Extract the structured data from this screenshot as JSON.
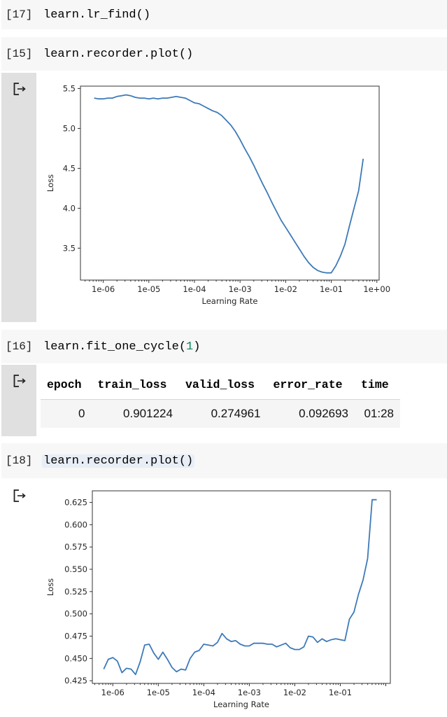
{
  "cells": [
    {
      "prompt": "[17]",
      "code": "learn.lr_find()"
    },
    {
      "prompt": "[15]",
      "code": "learn.recorder.plot()"
    },
    {
      "prompt": "[16]",
      "code_prefix": "learn.fit_one_cycle(",
      "code_arg": "1",
      "code_suffix": ")"
    },
    {
      "prompt": "[18]",
      "code": "learn.recorder.plot()"
    }
  ],
  "output_icon": "output-arrow-icon",
  "results_table": {
    "headers": [
      "epoch",
      "train_loss",
      "valid_loss",
      "error_rate",
      "time"
    ],
    "rows": [
      [
        "0",
        "0.901224",
        "0.274961",
        "0.092693",
        "01:28"
      ]
    ]
  },
  "colors": {
    "line": "#3d7ab8",
    "cell_bg": "#f7f7f7",
    "gutter_bg": "#e0e0e0"
  },
  "chart_data": [
    {
      "type": "line",
      "title": "",
      "xlabel": "Learning Rate",
      "ylabel": "Loss",
      "xscale": "log",
      "x_tick_labels": [
        "1e-06",
        "1e-05",
        "1e-04",
        "1e-03",
        "1e-02",
        "1e-01",
        "1e+00"
      ],
      "y_tick_labels": [
        "3.5",
        "4.0",
        "4.5",
        "5.0",
        "5.5"
      ],
      "ylim": [
        3.1,
        5.53
      ],
      "xlim_log10": [
        -6.5,
        0.05
      ],
      "grid": false,
      "series": [
        {
          "name": "loss",
          "log10_x": [
            -6.2,
            -6.1,
            -6.0,
            -5.9,
            -5.8,
            -5.7,
            -5.6,
            -5.5,
            -5.4,
            -5.3,
            -5.2,
            -5.1,
            -5.0,
            -4.9,
            -4.8,
            -4.7,
            -4.6,
            -4.5,
            -4.4,
            -4.3,
            -4.2,
            -4.1,
            -4.0,
            -3.9,
            -3.8,
            -3.7,
            -3.6,
            -3.5,
            -3.4,
            -3.3,
            -3.2,
            -3.1,
            -3.0,
            -2.9,
            -2.8,
            -2.7,
            -2.6,
            -2.5,
            -2.4,
            -2.3,
            -2.2,
            -2.1,
            -2.0,
            -1.9,
            -1.8,
            -1.7,
            -1.6,
            -1.5,
            -1.4,
            -1.3,
            -1.2,
            -1.1,
            -1.0,
            -0.9,
            -0.8,
            -0.7,
            -0.6,
            -0.5,
            -0.4,
            -0.3
          ],
          "loss": [
            5.38,
            5.37,
            5.37,
            5.38,
            5.38,
            5.4,
            5.41,
            5.42,
            5.41,
            5.39,
            5.38,
            5.38,
            5.37,
            5.38,
            5.37,
            5.38,
            5.38,
            5.39,
            5.4,
            5.39,
            5.38,
            5.35,
            5.32,
            5.31,
            5.28,
            5.25,
            5.22,
            5.2,
            5.16,
            5.1,
            5.04,
            4.96,
            4.86,
            4.75,
            4.65,
            4.54,
            4.42,
            4.3,
            4.19,
            4.07,
            3.96,
            3.85,
            3.76,
            3.67,
            3.58,
            3.49,
            3.4,
            3.32,
            3.26,
            3.22,
            3.2,
            3.19,
            3.19,
            3.28,
            3.4,
            3.55,
            3.78,
            4.0,
            4.22,
            4.62
          ]
        }
      ]
    },
    {
      "type": "line",
      "title": "",
      "xlabel": "Learning Rate",
      "ylabel": "Loss",
      "xscale": "log",
      "x_tick_labels": [
        "1e-06",
        "1e-05",
        "1e-04",
        "1e-03",
        "1e-02",
        "1e-01"
      ],
      "y_tick_labels": [
        "0.425",
        "0.450",
        "0.475",
        "0.500",
        "0.525",
        "0.550",
        "0.575",
        "0.600",
        "0.625"
      ],
      "ylim": [
        0.422,
        0.638
      ],
      "xlim_log10": [
        -6.45,
        0.1
      ],
      "grid": false,
      "series": [
        {
          "name": "loss",
          "log10_x": [
            -6.2,
            -6.1,
            -6.0,
            -5.9,
            -5.8,
            -5.7,
            -5.6,
            -5.5,
            -5.4,
            -5.3,
            -5.2,
            -5.1,
            -5.0,
            -4.9,
            -4.8,
            -4.7,
            -4.6,
            -4.5,
            -4.4,
            -4.3,
            -4.2,
            -4.1,
            -4.0,
            -3.9,
            -3.8,
            -3.7,
            -3.6,
            -3.5,
            -3.4,
            -3.3,
            -3.2,
            -3.1,
            -3.0,
            -2.9,
            -2.8,
            -2.7,
            -2.6,
            -2.5,
            -2.4,
            -2.3,
            -2.2,
            -2.1,
            -2.0,
            -1.9,
            -1.8,
            -1.7,
            -1.6,
            -1.5,
            -1.4,
            -1.3,
            -1.2
          ],
          "loss": [
            0.438,
            0.449,
            0.451,
            0.447,
            0.434,
            0.439,
            0.438,
            0.432,
            0.446,
            0.465,
            0.466,
            0.456,
            0.449,
            0.457,
            0.449,
            0.44,
            0.435,
            0.438,
            0.437,
            0.45,
            0.457,
            0.459,
            0.466,
            0.465,
            0.464,
            0.468,
            0.478,
            0.472,
            0.469,
            0.47,
            0.466,
            0.464,
            0.464,
            0.467,
            0.467,
            0.467,
            0.466,
            0.466,
            0.463,
            0.465,
            0.467,
            0.462,
            0.46,
            0.46,
            0.463,
            0.475,
            0.474,
            0.468,
            0.472,
            0.469,
            0.471
          ]
        },
        {
          "name": "loss_tail",
          "log10_x": [
            -1.2,
            -1.1,
            -1.0,
            -0.9,
            -0.8,
            -0.7,
            -0.6,
            -0.5,
            -0.4,
            -0.3,
            -0.2
          ],
          "loss": [
            0.471,
            0.472,
            0.471,
            0.47,
            0.494,
            0.502,
            0.522,
            0.538,
            0.562,
            0.628,
            0.628
          ]
        }
      ]
    }
  ]
}
